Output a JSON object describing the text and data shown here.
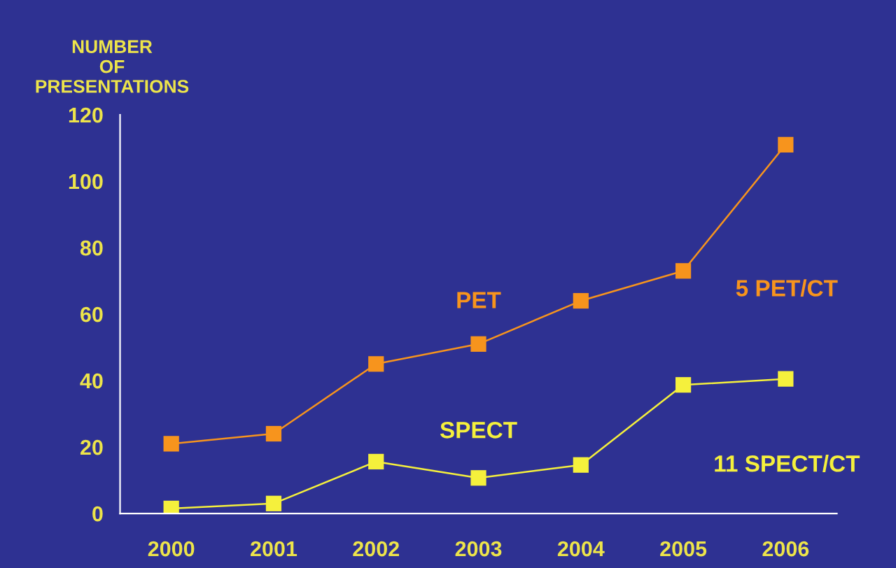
{
  "chart_data": {
    "type": "line",
    "ylabel": "NUMBER\nOF\nPRESENTATIONS",
    "categories": [
      "2000",
      "2001",
      "2002",
      "2003",
      "2004",
      "2005",
      "2006"
    ],
    "series": [
      {
        "name": "PET",
        "color": "#f7941d",
        "values": [
          21,
          24,
          45,
          51,
          64,
          73,
          111
        ]
      },
      {
        "name": "SPECT",
        "color": "#f5f03c",
        "values": [
          1.5,
          3,
          15.6,
          10.7,
          14.6,
          38.7,
          40.5
        ]
      }
    ],
    "ylim": [
      0,
      120
    ],
    "yticks": [
      0,
      20,
      40,
      60,
      80,
      100,
      120
    ],
    "marker": "square",
    "line_style": "solid",
    "grid": false,
    "legend": false,
    "annotations": [
      "5 PET/CT",
      "11 SPECT/CT"
    ]
  }
}
